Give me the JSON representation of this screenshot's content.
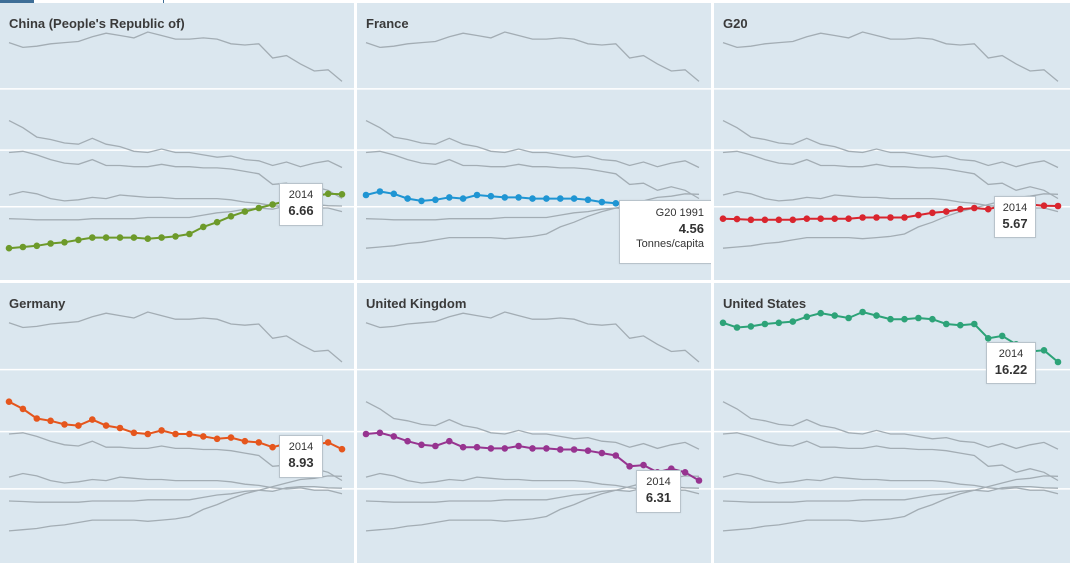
{
  "colors": {
    "panel_bg": "#dbe7ef",
    "grid": "#ffffff",
    "context_line": "#a3adb4",
    "China (People's Republic of)": "#6d9a2a",
    "France": "#1f95d3",
    "G20": "#d9252e",
    "Germany": "#e5561d",
    "United Kingdom": "#973490",
    "United States": "#2da378"
  },
  "panels": [
    {
      "title": "China (People's Republic of)",
      "tooltip": {
        "label": "2014",
        "value": "6.66"
      }
    },
    {
      "title": "France",
      "tooltip": {
        "label": "G20 1991",
        "value": "4.56",
        "unit": "Tonnes/capita"
      }
    },
    {
      "title": "G20",
      "tooltip": {
        "label": "2014",
        "value": "5.67"
      }
    },
    {
      "title": "Germany",
      "tooltip": {
        "label": "2014",
        "value": "8.93"
      }
    },
    {
      "title": "United Kingdom",
      "tooltip": {
        "label": "2014",
        "value": "6.31"
      }
    },
    {
      "title": "United States",
      "tooltip": {
        "label": "2014",
        "value": "16.22"
      }
    }
  ],
  "chart_data": {
    "type": "line",
    "x": [
      1990,
      1991,
      1992,
      1993,
      1994,
      1995,
      1996,
      1997,
      1998,
      1999,
      2000,
      2001,
      2002,
      2003,
      2004,
      2005,
      2006,
      2007,
      2008,
      2009,
      2010,
      2011,
      2012,
      2013,
      2014
    ],
    "ylim": [
      0,
      20.4
    ],
    "grid": true,
    "series": [
      {
        "name": "China (People's Republic of)",
        "values": [
          2.1,
          2.2,
          2.3,
          2.5,
          2.6,
          2.8,
          3.0,
          3.0,
          3.0,
          3.0,
          2.9,
          3.0,
          3.1,
          3.3,
          3.9,
          4.3,
          4.8,
          5.2,
          5.5,
          5.8,
          6.1,
          6.4,
          6.5,
          6.7,
          6.66
        ]
      },
      {
        "name": "France",
        "values": [
          6.6,
          6.9,
          6.7,
          6.3,
          6.1,
          6.2,
          6.4,
          6.3,
          6.6,
          6.5,
          6.4,
          6.4,
          6.3,
          6.3,
          6.3,
          6.3,
          6.2,
          6.0,
          5.9,
          5.7,
          5.6,
          5.7,
          5.5,
          5.5,
          5.2
        ]
      },
      {
        "name": "G20",
        "values": [
          4.6,
          4.56,
          4.5,
          4.5,
          4.5,
          4.5,
          4.6,
          4.6,
          4.6,
          4.6,
          4.7,
          4.7,
          4.7,
          4.7,
          4.9,
          5.1,
          5.2,
          5.4,
          5.5,
          5.4,
          5.7,
          5.8,
          5.8,
          5.7,
          5.67
        ]
      },
      {
        "name": "Germany",
        "values": [
          12.9,
          12.3,
          11.5,
          11.3,
          11.0,
          10.9,
          11.4,
          10.9,
          10.7,
          10.3,
          10.2,
          10.5,
          10.2,
          10.2,
          10.0,
          9.8,
          9.9,
          9.6,
          9.5,
          9.1,
          9.4,
          9.0,
          9.3,
          9.5,
          8.93
        ]
      },
      {
        "name": "United Kingdom",
        "values": [
          10.2,
          10.3,
          10.0,
          9.6,
          9.3,
          9.2,
          9.6,
          9.1,
          9.1,
          9.0,
          9.0,
          9.2,
          9.0,
          9.0,
          8.9,
          8.9,
          8.8,
          8.6,
          8.4,
          7.5,
          7.6,
          7.0,
          7.3,
          7.0,
          6.31
        ]
      },
      {
        "name": "United States",
        "values": [
          19.5,
          19.1,
          19.2,
          19.4,
          19.5,
          19.6,
          20.0,
          20.3,
          20.1,
          19.9,
          20.4,
          20.1,
          19.8,
          19.8,
          19.9,
          19.8,
          19.4,
          19.3,
          19.4,
          18.2,
          18.4,
          17.7,
          17.1,
          17.2,
          16.22
        ]
      }
    ]
  }
}
